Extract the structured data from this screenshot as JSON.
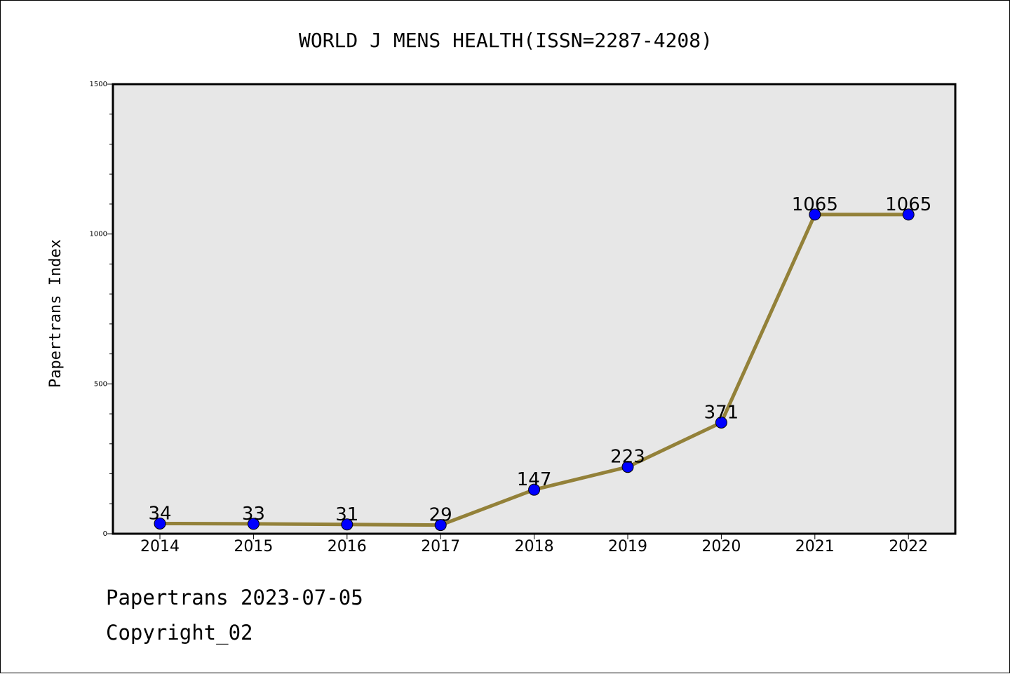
{
  "chart_data": {
    "type": "line",
    "title": "WORLD J MENS HEALTH(ISSN=2287-4208)",
    "xlabel": "",
    "ylabel": "Papertrans Index",
    "categories": [
      "2014",
      "2015",
      "2016",
      "2017",
      "2018",
      "2019",
      "2020",
      "2021",
      "2022"
    ],
    "series": [
      {
        "values": [
          34,
          33,
          31,
          29,
          147,
          223,
          371,
          1065,
          1065
        ]
      }
    ],
    "data_labels": [
      "34",
      "33",
      "31",
      "29",
      "147",
      "223",
      "371",
      "1065",
      "1065"
    ],
    "ylim": [
      0,
      1500
    ],
    "y_ticks": [
      "0",
      "500",
      "1000",
      "1500"
    ],
    "grid": false,
    "plot_background": "#e7e7e7",
    "line_color": "#938139",
    "marker_color": "#0000ff"
  },
  "footer": {
    "date_line": "Papertrans 2023-07-05",
    "copyright": "Copyright_02"
  }
}
